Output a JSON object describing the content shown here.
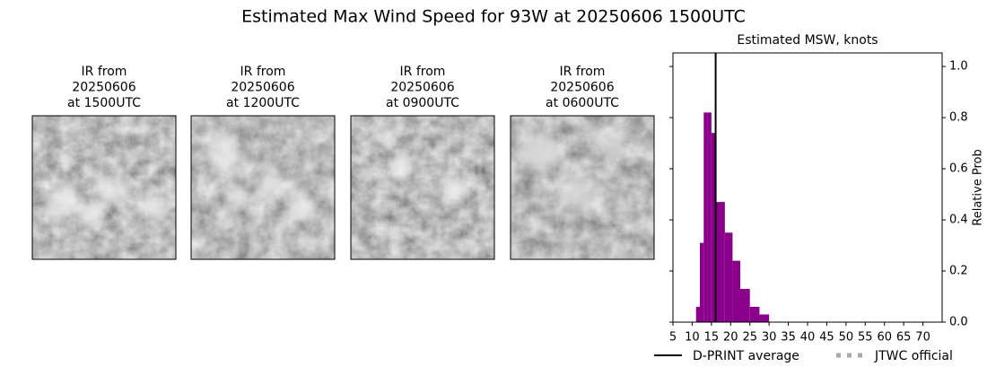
{
  "title": "Estimated Max Wind Speed for 93W at 20250606 1500UTC",
  "panels": [
    {
      "title": [
        "IR from",
        "20250606",
        "at 1500UTC"
      ]
    },
    {
      "title": [
        "IR from",
        "20250606",
        "at 1200UTC"
      ]
    },
    {
      "title": [
        "IR from",
        "20250606",
        "at 0900UTC"
      ]
    },
    {
      "title": [
        "IR from",
        "20250606",
        "at 0600UTC"
      ]
    }
  ],
  "chart_data": {
    "type": "histogram",
    "title": "Estimated MSW, knots",
    "ylabel": "Relative Prob",
    "bins": [
      11,
      12,
      13,
      14,
      15,
      16,
      18.5,
      20.5,
      22.5,
      25,
      27.5,
      30
    ],
    "values": [
      0.06,
      0.31,
      0.82,
      0.82,
      0.74,
      0.47,
      0.35,
      0.24,
      0.13,
      0.06,
      0.03
    ],
    "color": "#8b008b",
    "average": 16.1,
    "average_name": "D-PRINT average",
    "average_color": "#000000",
    "official_name": "JTWC official",
    "official_color": "#aaaaaa",
    "xlim": [
      5,
      75
    ],
    "xticks": [
      5,
      10,
      15,
      20,
      25,
      30,
      35,
      40,
      45,
      50,
      55,
      60,
      65,
      70
    ],
    "ylim": [
      0,
      1.053
    ],
    "yticks": [
      {
        "value": 0,
        "label": "0.0"
      },
      0.2,
      0.4,
      0.6,
      0.8,
      {
        "value": 1,
        "label": "1.0"
      }
    ]
  }
}
